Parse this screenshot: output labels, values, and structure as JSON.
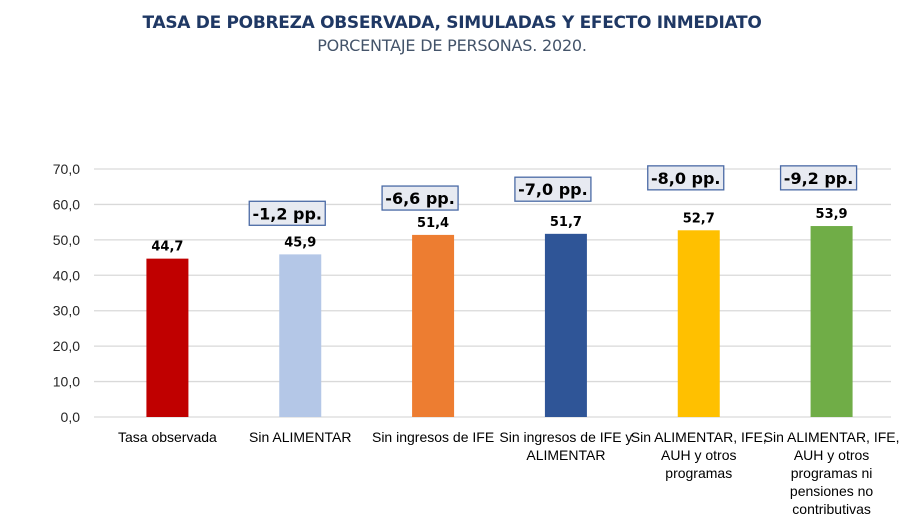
{
  "chart_data": {
    "type": "bar",
    "title": "TASA DE POBREZA OBSERVADA, SIMULADAS Y EFECTO INMEDIATO",
    "subtitle": "PORCENTAJE DE PERSONAS. 2020.",
    "xlabel": "",
    "ylabel": "",
    "ylim": [
      0,
      70
    ],
    "yticks": [
      "0,0",
      "10,0",
      "20,0",
      "30,0",
      "40,0",
      "50,0",
      "60,0",
      "70,0"
    ],
    "ytick_values": [
      0,
      10,
      20,
      30,
      40,
      50,
      60,
      70
    ],
    "grid": true,
    "legend": "none",
    "categories": [
      [
        "Tasa observada"
      ],
      [
        "Sin ALIMENTAR"
      ],
      [
        "Sin ingresos de IFE"
      ],
      [
        "Sin ingresos de IFE y",
        "ALIMENTAR"
      ],
      [
        "Sin ALIMENTAR, IFE,",
        "AUH y otros",
        "programas"
      ],
      [
        "Sin ALIMENTAR, IFE,",
        "AUH y otros",
        "programas ni",
        "pensiones no",
        "contributivas"
      ]
    ],
    "values": [
      44.7,
      45.9,
      51.4,
      51.7,
      52.7,
      53.9
    ],
    "value_labels": [
      "44,7",
      "45,9",
      "51,4",
      "51,7",
      "52,7",
      "53,9"
    ],
    "bar_colors": [
      "#c00000",
      "#b4c7e7",
      "#ed7d31",
      "#2f5597",
      "#ffc000",
      "#70ad47"
    ],
    "annotations": [
      null,
      {
        "text": "-1,2 pp.",
        "level": 57.5
      },
      {
        "text": "-6,6 pp.",
        "level": 61.8
      },
      {
        "text": "-7,0 pp.",
        "level": 64.3
      },
      {
        "text": "-8,0 pp.",
        "level": 67.5
      },
      {
        "text": "-9,2 pp.",
        "level": 67.5
      }
    ]
  },
  "colors": {
    "title": "#1f3864",
    "subtitle": "#44546a",
    "grid": "#d9d9d9",
    "annotation_fill": "#e7eaf1",
    "annotation_border": "#4a6aa5"
  }
}
